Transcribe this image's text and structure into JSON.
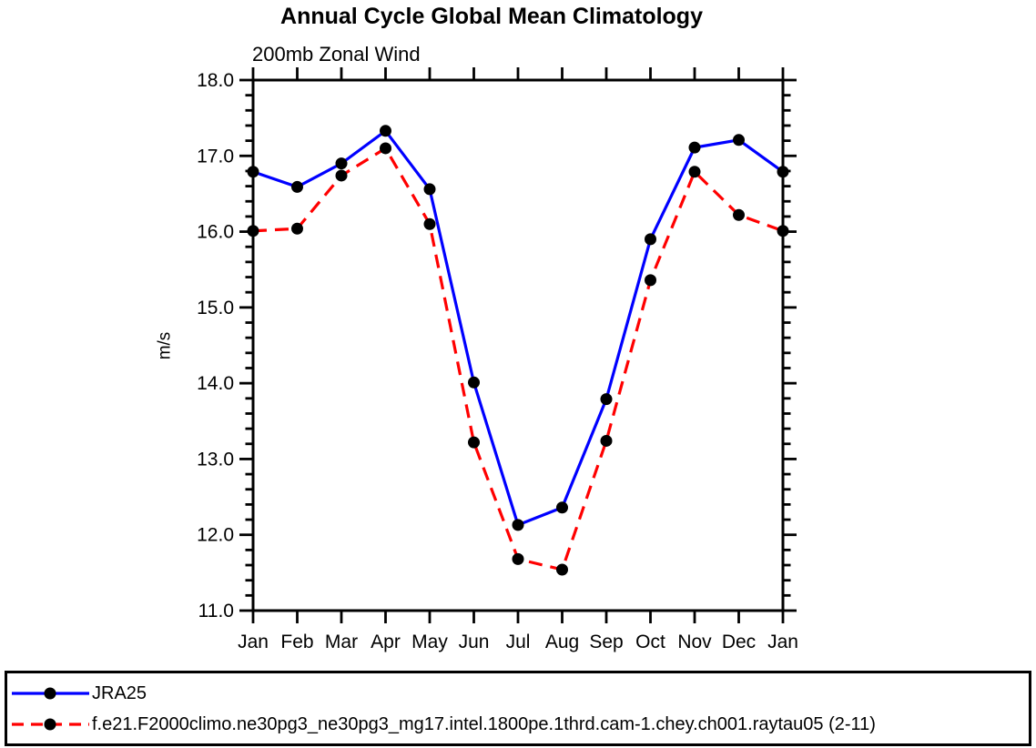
{
  "chart_data": {
    "type": "line",
    "title": "Annual Cycle Global Mean Climatology",
    "subtitle": "200mb Zonal Wind",
    "ylabel": "m/s",
    "xlabel": "",
    "ylim": [
      11.0,
      18.0
    ],
    "ytick_step": 1.0,
    "ytick_minor_step": 0.2,
    "ytick_labels": [
      "11.0",
      "12.0",
      "13.0",
      "14.0",
      "15.0",
      "16.0",
      "17.0",
      "18.0"
    ],
    "categories": [
      "Jan",
      "Feb",
      "Mar",
      "Apr",
      "May",
      "Jun",
      "Jul",
      "Aug",
      "Sep",
      "Oct",
      "Nov",
      "Dec",
      "Jan"
    ],
    "grid": false,
    "legend_position": "bottom-outside-box",
    "marker": {
      "shape": "circle",
      "color": "#000000",
      "radius": 6.5
    },
    "axis_color": "#000000",
    "series": [
      {
        "name": "JRA25",
        "color": "#0000ff",
        "dash": "solid",
        "values": [
          16.79,
          16.59,
          16.9,
          17.33,
          16.56,
          14.01,
          12.13,
          12.36,
          13.79,
          15.9,
          17.11,
          17.21,
          16.79
        ]
      },
      {
        "name": "f.e21.F2000climo.ne30pg3_ne30pg3_mg17.intel.1800pe.1thrd.cam-1.chey.ch001.raytau05 (2-11)",
        "color": "#ff0000",
        "dash": "dashed",
        "values": [
          16.01,
          16.04,
          16.74,
          17.1,
          16.1,
          13.22,
          11.68,
          11.54,
          13.24,
          15.36,
          16.79,
          16.22,
          16.01
        ]
      }
    ]
  }
}
